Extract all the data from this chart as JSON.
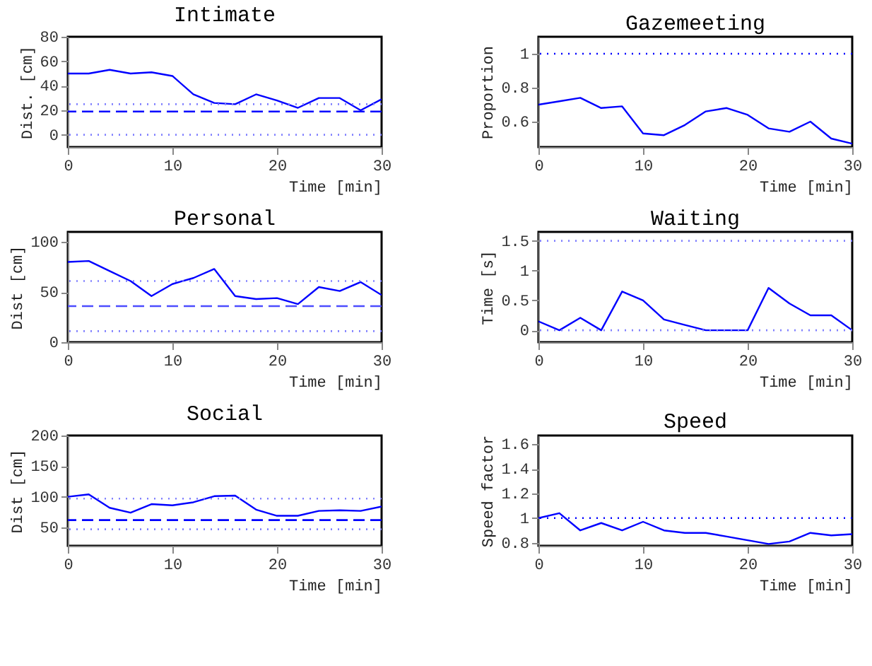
{
  "chart_data": [
    {
      "type": "line",
      "title": "Intimate",
      "xlabel": "Time [min]",
      "ylabel": "Dist. [cm]",
      "x": [
        0,
        2,
        4,
        6,
        8,
        10,
        12,
        14,
        16,
        18,
        20,
        22,
        24,
        26,
        28,
        30
      ],
      "xlim": [
        0,
        30
      ],
      "xticks": [
        0,
        10,
        20,
        30
      ],
      "ylim": [
        -10,
        80
      ],
      "yticks": [
        0,
        20,
        40,
        60,
        80
      ],
      "grid": false,
      "line_style": "solid",
      "series": [
        {
          "color": "#0000ff",
          "values": [
            50,
            50,
            53,
            50,
            51,
            48,
            33,
            26,
            25,
            33,
            28,
            22,
            30,
            30,
            20,
            29
          ]
        }
      ],
      "ref_lines": [
        {
          "axis": "y",
          "value": 25,
          "color": "#8080ff",
          "line_style": "dotted"
        },
        {
          "axis": "y",
          "value": 0,
          "color": "#8080ff",
          "line_style": "dotted"
        },
        {
          "axis": "y",
          "value": 19,
          "color": "#0000ff",
          "line_style": "dashed"
        }
      ]
    },
    {
      "type": "line",
      "title": "Gazemeeting",
      "xlabel": "Time [min]",
      "ylabel": "Proportion",
      "x": [
        0,
        2,
        4,
        6,
        8,
        10,
        12,
        14,
        16,
        18,
        20,
        22,
        24,
        26,
        28,
        30
      ],
      "xlim": [
        0,
        30
      ],
      "xticks": [
        0,
        10,
        20,
        30
      ],
      "ylim": [
        0.45,
        1.1
      ],
      "yticks": [
        0.6,
        0.8,
        1
      ],
      "grid": false,
      "line_style": "solid",
      "series": [
        {
          "color": "#0000ff",
          "values": [
            0.7,
            0.72,
            0.74,
            0.68,
            0.69,
            0.53,
            0.52,
            0.58,
            0.66,
            0.68,
            0.64,
            0.56,
            0.54,
            0.6,
            0.5,
            0.47
          ]
        }
      ],
      "ref_lines": [
        {
          "axis": "y",
          "value": 1,
          "color": "#0000ff",
          "line_style": "dotted"
        }
      ]
    },
    {
      "type": "line",
      "title": "Personal",
      "xlabel": "Time [min]",
      "ylabel": "Dist [cm]",
      "x": [
        0,
        2,
        4,
        6,
        8,
        10,
        12,
        14,
        16,
        18,
        20,
        22,
        24,
        26,
        28,
        30
      ],
      "xlim": [
        0,
        30
      ],
      "xticks": [
        0,
        10,
        20,
        30
      ],
      "ylim": [
        0,
        110
      ],
      "yticks": [
        0,
        50,
        100
      ],
      "grid": false,
      "line_style": "solid",
      "series": [
        {
          "color": "#0000ff",
          "values": [
            80,
            81,
            71,
            61,
            46,
            58,
            64,
            73,
            46,
            43,
            44,
            38,
            55,
            51,
            60,
            47
          ]
        }
      ],
      "ref_lines": [
        {
          "axis": "y",
          "value": 61,
          "color": "#8080ff",
          "line_style": "dotted"
        },
        {
          "axis": "y",
          "value": 11,
          "color": "#8080ff",
          "line_style": "dotted"
        },
        {
          "axis": "y",
          "value": 36,
          "color": "#4d4dff",
          "line_style": "dashed"
        }
      ]
    },
    {
      "type": "line",
      "title": "Waiting",
      "xlabel": "Time [min]",
      "ylabel": "Time [s]",
      "x": [
        0,
        2,
        4,
        6,
        8,
        10,
        12,
        14,
        16,
        18,
        20,
        22,
        24,
        26,
        28,
        30
      ],
      "xlim": [
        0,
        30
      ],
      "xticks": [
        0,
        10,
        20,
        30
      ],
      "ylim": [
        -0.2,
        1.65
      ],
      "yticks": [
        0,
        0.5,
        1,
        1.5
      ],
      "grid": false,
      "line_style": "solid",
      "series": [
        {
          "color": "#0000ff",
          "values": [
            0.15,
            0,
            0.21,
            0,
            0.65,
            0.5,
            0.18,
            0.09,
            0,
            0,
            0,
            0.71,
            0.45,
            0.25,
            0.25,
            0
          ]
        }
      ],
      "ref_lines": [
        {
          "axis": "y",
          "value": 1.5,
          "color": "#8080ff",
          "line_style": "dotted"
        },
        {
          "axis": "y",
          "value": 0,
          "color": "#8080ff",
          "line_style": "dotted"
        }
      ]
    },
    {
      "type": "line",
      "title": "Social",
      "xlabel": "Time [min]",
      "ylabel": "Dist [cm]",
      "x": [
        0,
        2,
        4,
        6,
        8,
        10,
        12,
        14,
        16,
        18,
        20,
        22,
        24,
        26,
        28,
        30
      ],
      "xlim": [
        0,
        30
      ],
      "xticks": [
        0,
        10,
        20,
        30
      ],
      "ylim": [
        20,
        200
      ],
      "yticks": [
        50,
        100,
        150,
        200
      ],
      "grid": false,
      "line_style": "solid",
      "series": [
        {
          "color": "#0000ff",
          "values": [
            100,
            104,
            82,
            74,
            88,
            86,
            91,
            101,
            102,
            79,
            69,
            69,
            77,
            78,
            77,
            84
          ]
        }
      ],
      "ref_lines": [
        {
          "axis": "y",
          "value": 97,
          "color": "#8080ff",
          "line_style": "dotted"
        },
        {
          "axis": "y",
          "value": 47,
          "color": "#8080ff",
          "line_style": "dotted"
        },
        {
          "axis": "y",
          "value": 62,
          "color": "#0000ff",
          "line_style": "dashed"
        }
      ]
    },
    {
      "type": "line",
      "title": "Speed",
      "xlabel": "Time [min]",
      "ylabel": "Speed factor",
      "x": [
        0,
        2,
        4,
        6,
        8,
        10,
        12,
        14,
        16,
        18,
        20,
        22,
        24,
        26,
        28,
        30
      ],
      "xlim": [
        0,
        30
      ],
      "xticks": [
        0,
        10,
        20,
        30
      ],
      "ylim": [
        0.775,
        1.67
      ],
      "yticks": [
        0.8,
        1,
        1.2,
        1.4,
        1.6
      ],
      "grid": false,
      "line_style": "solid",
      "series": [
        {
          "color": "#0000ff",
          "values": [
            1.0,
            1.04,
            0.9,
            0.96,
            0.9,
            0.97,
            0.9,
            0.88,
            0.88,
            0.85,
            0.82,
            0.79,
            0.81,
            0.88,
            0.86,
            0.87
          ]
        }
      ],
      "ref_lines": [
        {
          "axis": "y",
          "value": 1,
          "color": "#0000ff",
          "line_style": "dotted"
        }
      ]
    }
  ]
}
